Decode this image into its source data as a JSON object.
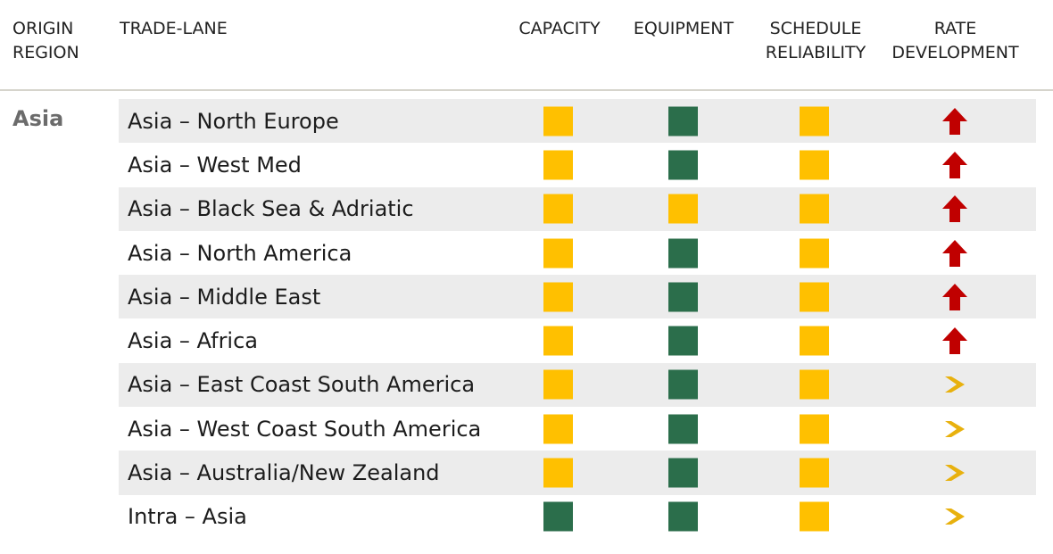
{
  "colors": {
    "yellow": "#ffc000",
    "green": "#2b6e4b",
    "up_arrow": "#c00000",
    "right_arrow": "#e8b10e"
  },
  "header": {
    "origin_region": "ORIGIN\nREGION",
    "trade_lane": "TRADE-LANE",
    "capacity": "CAPACITY",
    "equipment": "EQUIPMENT",
    "schedule_reliability": "SCHEDULE\nRELIABILITY",
    "rate_development": "RATE\nDEVELOPMENT"
  },
  "region": "Asia",
  "lanes": [
    {
      "name": "Asia – North Europe",
      "capacity": "yellow",
      "equipment": "green",
      "schedule": "yellow",
      "rate": "up-arrow-icon"
    },
    {
      "name": "Asia – West Med",
      "capacity": "yellow",
      "equipment": "green",
      "schedule": "yellow",
      "rate": "up-arrow-icon"
    },
    {
      "name": "Asia – Black Sea & Adriatic",
      "capacity": "yellow",
      "equipment": "yellow",
      "schedule": "yellow",
      "rate": "up-arrow-icon"
    },
    {
      "name": "Asia – North America",
      "capacity": "yellow",
      "equipment": "green",
      "schedule": "yellow",
      "rate": "up-arrow-icon"
    },
    {
      "name": "Asia – Middle East",
      "capacity": "yellow",
      "equipment": "green",
      "schedule": "yellow",
      "rate": "up-arrow-icon"
    },
    {
      "name": "Asia – Africa",
      "capacity": "yellow",
      "equipment": "green",
      "schedule": "yellow",
      "rate": "up-arrow-icon"
    },
    {
      "name": "Asia – East Coast South America",
      "capacity": "yellow",
      "equipment": "green",
      "schedule": "yellow",
      "rate": "right-arrow-icon"
    },
    {
      "name": "Asia – West Coast South America",
      "capacity": "yellow",
      "equipment": "green",
      "schedule": "yellow",
      "rate": "right-arrow-icon"
    },
    {
      "name": "Asia – Australia/New Zealand",
      "capacity": "yellow",
      "equipment": "green",
      "schedule": "yellow",
      "rate": "right-arrow-icon"
    },
    {
      "name": "Intra – Asia",
      "capacity": "green",
      "equipment": "green",
      "schedule": "yellow",
      "rate": "right-arrow-icon"
    }
  ]
}
